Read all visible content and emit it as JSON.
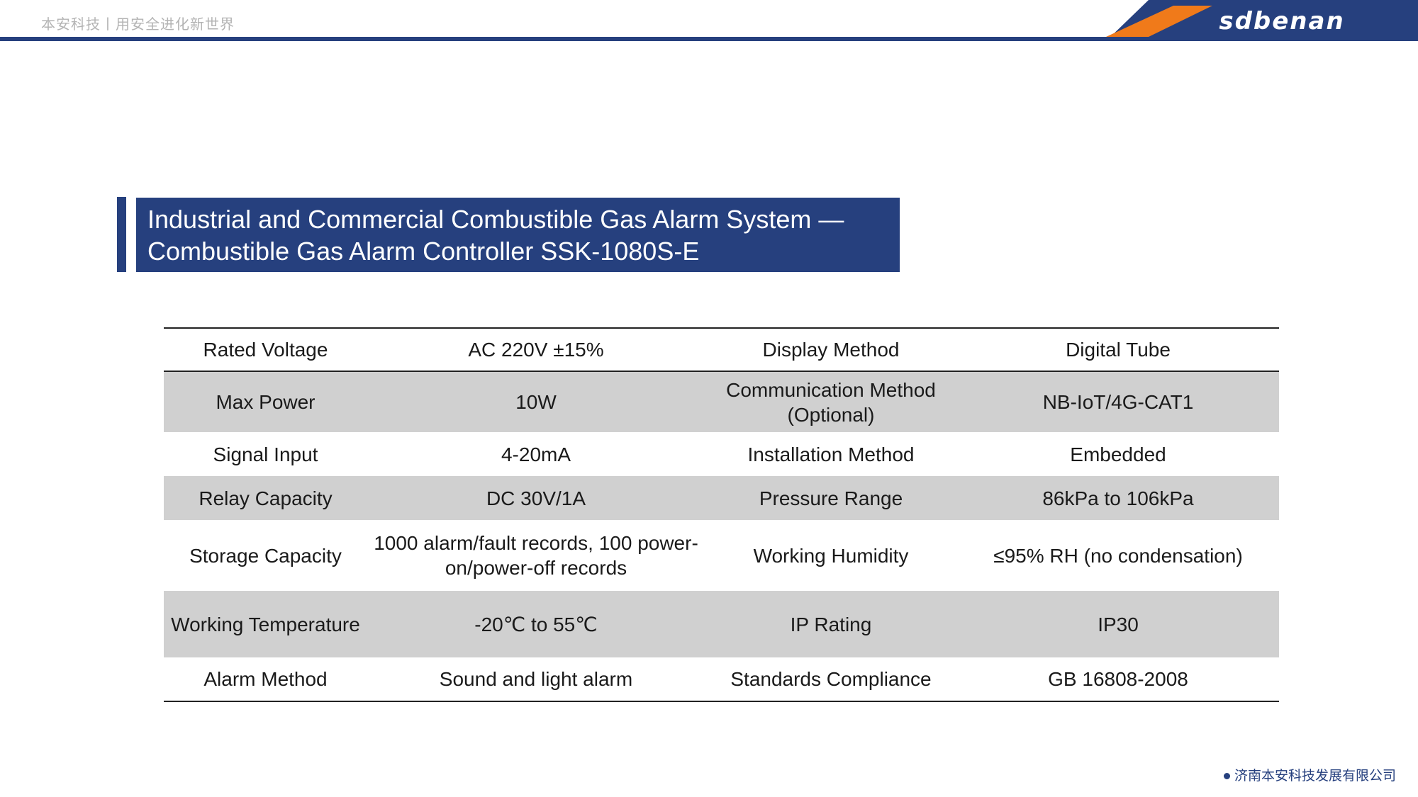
{
  "header": {
    "tagline": "本安科技丨用安全进化新世界",
    "brand_logo_text": "sdbenan",
    "brand_colors": {
      "navy": "#26407e",
      "orange": "#f07a1a"
    }
  },
  "title": {
    "line1": "Industrial and Commercial Combustible Gas Alarm System —",
    "line2": "Combustible Gas Alarm Controller SSK-1080S-E"
  },
  "specs": {
    "rows": [
      [
        "Rated Voltage",
        "AC 220V ±15%",
        "Display Method",
        "Digital Tube"
      ],
      [
        "Max Power",
        "10W",
        "Communication Method (Optional)",
        "NB-IoT/4G-CAT1"
      ],
      [
        "Signal Input",
        "4-20mA",
        "Installation Method",
        "Embedded"
      ],
      [
        "Relay Capacity",
        "DC 30V/1A",
        "Pressure Range",
        "86kPa to 106kPa"
      ],
      [
        "Storage Capacity",
        "1000 alarm/fault records, 100 power-on/power-off records",
        "Working Humidity",
        "≤95% RH (no condensation)"
      ],
      [
        "Working Temperature",
        "-20℃ to 55℃",
        "IP Rating",
        "IP30"
      ],
      [
        "Alarm Method",
        "Sound and light alarm",
        "Standards Compliance",
        "GB 16808-2008"
      ]
    ]
  },
  "footer": {
    "company": "济南本安科技发展有限公司"
  }
}
